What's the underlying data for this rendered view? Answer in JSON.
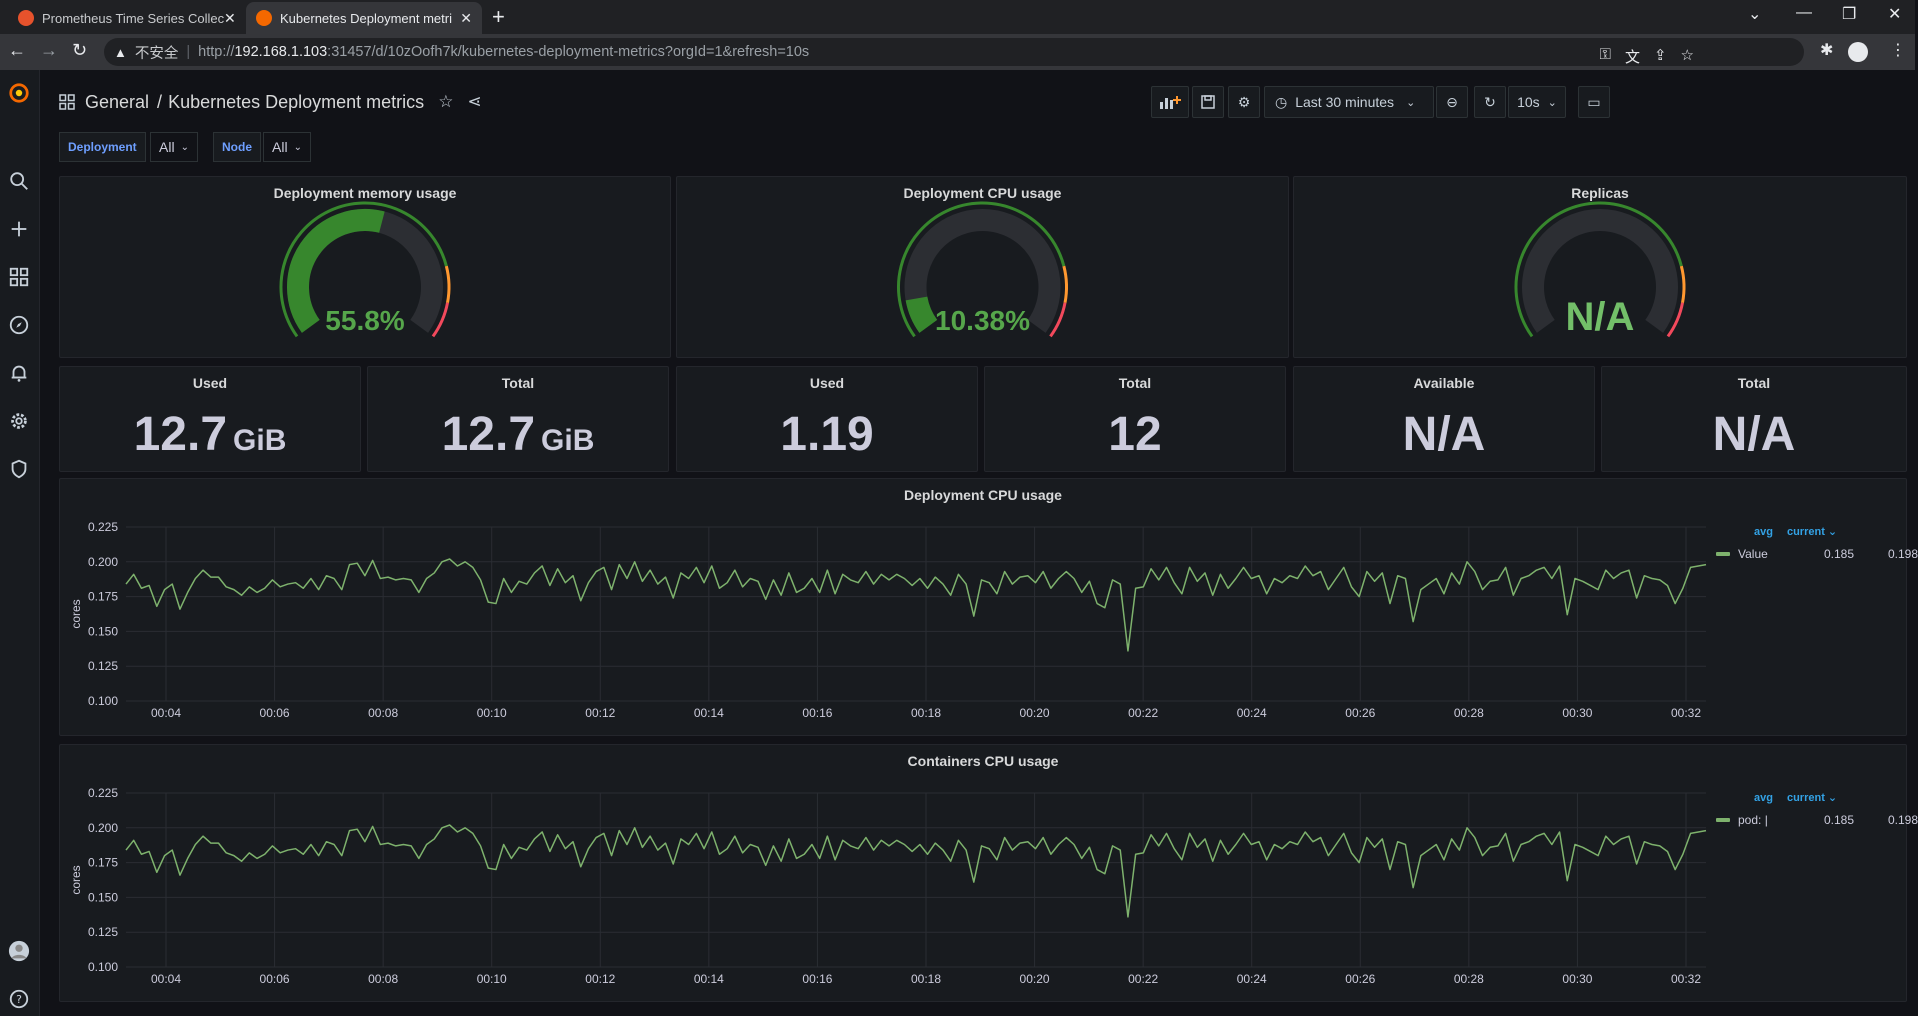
{
  "browser": {
    "tabs": [
      {
        "title": "Prometheus Time Series Collec",
        "favicon_color": "#e6522c",
        "active": false
      },
      {
        "title": "Kubernetes Deployment metri",
        "favicon_color": "#f46800",
        "active": true
      }
    ],
    "new_tab": "+",
    "url": {
      "insecure_label": "不安全",
      "scheme": "http://",
      "host": "192.168.1.103",
      "rest": ":31457/d/10zOofh7k/kubernetes-deployment-metrics?orgId=1&refresh=10s"
    }
  },
  "header": {
    "folder": "General",
    "separator": "/",
    "title": "Kubernetes Deployment metrics"
  },
  "toolbar": {
    "time_range": "Last 30 minutes",
    "refresh_interval": "10s"
  },
  "variables": [
    {
      "label": "Deployment",
      "value": "All"
    },
    {
      "label": "Node",
      "value": "All"
    }
  ],
  "gauges": [
    {
      "title": "Deployment memory usage",
      "display": "55.8%",
      "value": 55.8,
      "color": "#37872d",
      "text_color": "#56a64b"
    },
    {
      "title": "Deployment CPU usage",
      "display": "10.38%",
      "value": 10.38,
      "color": "#37872d",
      "text_color": "#56a64b"
    },
    {
      "title": "Replicas",
      "display": "N/A",
      "value": null,
      "color": "#73bf69",
      "text_color": "#73bf69"
    }
  ],
  "stats": [
    {
      "title": "Used",
      "value": "12.7",
      "unit": "GiB"
    },
    {
      "title": "Total",
      "value": "12.7",
      "unit": "GiB"
    },
    {
      "title": "Used",
      "value": "1.19",
      "unit": ""
    },
    {
      "title": "Total",
      "value": "12",
      "unit": ""
    },
    {
      "title": "Available",
      "value": "N/A",
      "unit": ""
    },
    {
      "title": "Total",
      "value": "N/A",
      "unit": ""
    }
  ],
  "colors": {
    "series": "#7eb26d",
    "threshold_green": "#37872d",
    "threshold_orange": "#ff9830",
    "threshold_red": "#f2495c"
  },
  "chart_data": [
    {
      "type": "line",
      "title": "Deployment CPU usage",
      "ylabel": "cores",
      "ylim": [
        0.1,
        0.225
      ],
      "yticks": [
        "0.225",
        "0.200",
        "0.175",
        "0.150",
        "0.125",
        "0.100"
      ],
      "xticks": [
        "00:04",
        "00:06",
        "00:08",
        "00:10",
        "00:12",
        "00:14",
        "00:16",
        "00:18",
        "00:20",
        "00:22",
        "00:24",
        "00:26",
        "00:28",
        "00:30",
        "00:32"
      ],
      "legend_headers": [
        "avg",
        "current"
      ],
      "series": [
        {
          "name": "Value",
          "avg": "0.185",
          "current": "0.198",
          "values": [
            0.184,
            0.191,
            0.181,
            0.183,
            0.168,
            0.18,
            0.184,
            0.166,
            0.178,
            0.188,
            0.194,
            0.189,
            0.189,
            0.182,
            0.18,
            0.176,
            0.182,
            0.178,
            0.181,
            0.187,
            0.182,
            0.184,
            0.185,
            0.181,
            0.188,
            0.18,
            0.19,
            0.188,
            0.18,
            0.198,
            0.199,
            0.19,
            0.201,
            0.188,
            0.189,
            0.187,
            0.188,
            0.187,
            0.178,
            0.188,
            0.192,
            0.2,
            0.202,
            0.197,
            0.2,
            0.196,
            0.187,
            0.171,
            0.17,
            0.188,
            0.178,
            0.186,
            0.184,
            0.192,
            0.197,
            0.183,
            0.195,
            0.185,
            0.19,
            0.172,
            0.185,
            0.193,
            0.196,
            0.18,
            0.198,
            0.188,
            0.2,
            0.186,
            0.194,
            0.184,
            0.189,
            0.174,
            0.192,
            0.188,
            0.196,
            0.185,
            0.197,
            0.181,
            0.185,
            0.194,
            0.182,
            0.188,
            0.186,
            0.173,
            0.187,
            0.176,
            0.192,
            0.178,
            0.181,
            0.188,
            0.178,
            0.194,
            0.177,
            0.191,
            0.187,
            0.185,
            0.193,
            0.184,
            0.191,
            0.187,
            0.191,
            0.188,
            0.183,
            0.188,
            0.181,
            0.189,
            0.184,
            0.176,
            0.191,
            0.184,
            0.161,
            0.187,
            0.185,
            0.177,
            0.193,
            0.184,
            0.189,
            0.19,
            0.185,
            0.193,
            0.181,
            0.188,
            0.193,
            0.188,
            0.178,
            0.186,
            0.17,
            0.167,
            0.187,
            0.184,
            0.136,
            0.181,
            0.182,
            0.195,
            0.187,
            0.196,
            0.185,
            0.177,
            0.196,
            0.186,
            0.192,
            0.176,
            0.191,
            0.181,
            0.188,
            0.196,
            0.188,
            0.19,
            0.177,
            0.188,
            0.185,
            0.19,
            0.188,
            0.197,
            0.19,
            0.193,
            0.18,
            0.188,
            0.196,
            0.182,
            0.175,
            0.193,
            0.186,
            0.192,
            0.17,
            0.19,
            0.188,
            0.157,
            0.18,
            0.184,
            0.188,
            0.177,
            0.192,
            0.184,
            0.2,
            0.193,
            0.18,
            0.186,
            0.187,
            0.196,
            0.176,
            0.188,
            0.19,
            0.194,
            0.196,
            0.188,
            0.197,
            0.162,
            0.188,
            0.186,
            0.183,
            0.18,
            0.194,
            0.188,
            0.192,
            0.194,
            0.174,
            0.19,
            0.188,
            0.187,
            0.183,
            0.17,
            0.181,
            0.196,
            0.197,
            0.198
          ]
        }
      ]
    },
    {
      "type": "line",
      "title": "Containers CPU usage",
      "ylabel": "cores",
      "ylim": [
        0.1,
        0.225
      ],
      "yticks": [
        "0.225",
        "0.200",
        "0.175",
        "0.150",
        "0.125",
        "0.100"
      ],
      "xticks": [
        "00:04",
        "00:06",
        "00:08",
        "00:10",
        "00:12",
        "00:14",
        "00:16",
        "00:18",
        "00:20",
        "00:22",
        "00:24",
        "00:26",
        "00:28",
        "00:30",
        "00:32"
      ],
      "legend_headers": [
        "avg",
        "current"
      ],
      "series": [
        {
          "name": "pod: |",
          "avg": "0.185",
          "current": "0.198",
          "values": [
            0.184,
            0.191,
            0.181,
            0.183,
            0.168,
            0.18,
            0.184,
            0.166,
            0.178,
            0.188,
            0.194,
            0.189,
            0.189,
            0.182,
            0.18,
            0.176,
            0.182,
            0.178,
            0.181,
            0.187,
            0.182,
            0.184,
            0.185,
            0.181,
            0.188,
            0.18,
            0.19,
            0.188,
            0.18,
            0.198,
            0.199,
            0.19,
            0.201,
            0.188,
            0.189,
            0.187,
            0.188,
            0.187,
            0.178,
            0.188,
            0.192,
            0.2,
            0.202,
            0.197,
            0.2,
            0.196,
            0.187,
            0.171,
            0.17,
            0.188,
            0.178,
            0.186,
            0.184,
            0.192,
            0.197,
            0.183,
            0.195,
            0.185,
            0.19,
            0.172,
            0.185,
            0.193,
            0.196,
            0.18,
            0.198,
            0.188,
            0.2,
            0.186,
            0.194,
            0.184,
            0.189,
            0.174,
            0.192,
            0.188,
            0.196,
            0.185,
            0.197,
            0.181,
            0.185,
            0.194,
            0.182,
            0.188,
            0.186,
            0.173,
            0.187,
            0.176,
            0.192,
            0.178,
            0.181,
            0.188,
            0.178,
            0.194,
            0.177,
            0.191,
            0.187,
            0.185,
            0.193,
            0.184,
            0.191,
            0.187,
            0.191,
            0.188,
            0.183,
            0.188,
            0.181,
            0.189,
            0.184,
            0.176,
            0.191,
            0.184,
            0.161,
            0.187,
            0.185,
            0.177,
            0.193,
            0.184,
            0.189,
            0.19,
            0.185,
            0.193,
            0.181,
            0.188,
            0.193,
            0.188,
            0.178,
            0.186,
            0.17,
            0.167,
            0.187,
            0.184,
            0.136,
            0.181,
            0.182,
            0.195,
            0.187,
            0.196,
            0.185,
            0.177,
            0.196,
            0.186,
            0.192,
            0.176,
            0.191,
            0.181,
            0.188,
            0.196,
            0.188,
            0.19,
            0.177,
            0.188,
            0.185,
            0.19,
            0.188,
            0.197,
            0.19,
            0.193,
            0.18,
            0.188,
            0.196,
            0.182,
            0.175,
            0.193,
            0.186,
            0.192,
            0.17,
            0.19,
            0.188,
            0.157,
            0.18,
            0.184,
            0.188,
            0.177,
            0.192,
            0.184,
            0.2,
            0.193,
            0.18,
            0.186,
            0.187,
            0.196,
            0.176,
            0.188,
            0.19,
            0.194,
            0.196,
            0.188,
            0.197,
            0.162,
            0.188,
            0.186,
            0.183,
            0.18,
            0.194,
            0.188,
            0.192,
            0.194,
            0.174,
            0.19,
            0.188,
            0.187,
            0.183,
            0.17,
            0.181,
            0.196,
            0.197,
            0.198
          ]
        }
      ]
    }
  ]
}
